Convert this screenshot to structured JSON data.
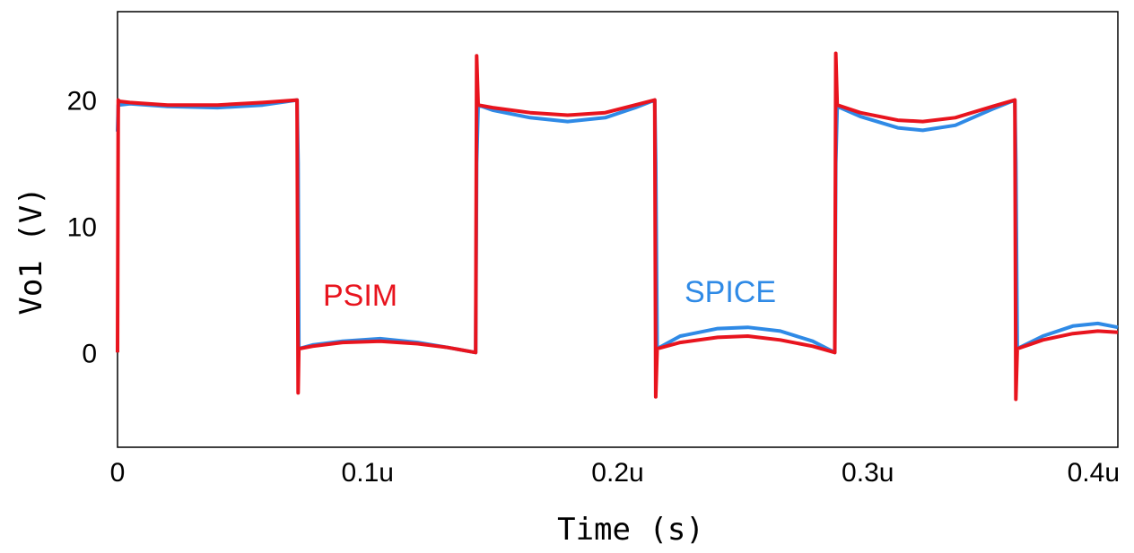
{
  "chart_data": {
    "type": "line",
    "xlabel": "Time (s)",
    "ylabel": "Vo1 (V)",
    "xlim": [
      0,
      0.4
    ],
    "ylim": [
      -7.5,
      27
    ],
    "x_ticks": [
      {
        "value": 0,
        "label": "0"
      },
      {
        "value": 0.1,
        "label": "0.1u"
      },
      {
        "value": 0.2,
        "label": "0.2u"
      },
      {
        "value": 0.3,
        "label": "0.3u"
      },
      {
        "value": 0.4,
        "label": "0.4u"
      }
    ],
    "y_ticks": [
      {
        "value": 0,
        "label": "0"
      },
      {
        "value": 10,
        "label": "10"
      },
      {
        "value": 20,
        "label": "20"
      }
    ],
    "grid": false,
    "legend": "inline labels",
    "series": [
      {
        "name": "SPICE",
        "color": "#2f8ae6",
        "x": [
          0.0,
          0.0003,
          0.005,
          0.02,
          0.04,
          0.058,
          0.0718,
          0.0722,
          0.0725,
          0.078,
          0.09,
          0.105,
          0.12,
          0.132,
          0.1432,
          0.1436,
          0.1442,
          0.15,
          0.165,
          0.18,
          0.195,
          0.207,
          0.2148,
          0.2152,
          0.2158,
          0.225,
          0.24,
          0.252,
          0.265,
          0.278,
          0.2868,
          0.2872,
          0.2878,
          0.297,
          0.312,
          0.322,
          0.335,
          0.35,
          0.3588,
          0.3592,
          0.3598,
          0.37,
          0.382,
          0.392,
          0.4
        ],
        "values": [
          17.5,
          19.6,
          19.7,
          19.5,
          19.4,
          19.6,
          20.0,
          15.0,
          0.3,
          0.6,
          0.9,
          1.1,
          0.8,
          0.4,
          0.0,
          15.0,
          19.6,
          19.2,
          18.6,
          18.3,
          18.6,
          19.4,
          20.0,
          15.0,
          0.3,
          1.3,
          1.9,
          2.0,
          1.7,
          0.9,
          0.0,
          15.0,
          19.5,
          18.7,
          17.8,
          17.6,
          18.0,
          19.3,
          20.0,
          15.0,
          0.3,
          1.3,
          2.1,
          2.3,
          2.0
        ]
      },
      {
        "name": "PSIM",
        "color": "#e8141e",
        "x": [
          0.0,
          0.0003,
          0.0006,
          0.005,
          0.02,
          0.04,
          0.058,
          0.0718,
          0.0722,
          0.0725,
          0.078,
          0.09,
          0.105,
          0.12,
          0.132,
          0.1432,
          0.1436,
          0.1442,
          0.15,
          0.165,
          0.18,
          0.195,
          0.207,
          0.2148,
          0.2152,
          0.2158,
          0.225,
          0.24,
          0.252,
          0.265,
          0.278,
          0.2868,
          0.2872,
          0.2878,
          0.297,
          0.312,
          0.322,
          0.335,
          0.35,
          0.3588,
          0.3592,
          0.3598,
          0.37,
          0.382,
          0.392,
          0.4
        ],
        "values": [
          0.0,
          20.0,
          19.9,
          19.8,
          19.6,
          19.6,
          19.8,
          20.0,
          -3.2,
          0.3,
          0.5,
          0.8,
          0.9,
          0.7,
          0.4,
          0.0,
          23.5,
          19.6,
          19.4,
          19.0,
          18.8,
          19.0,
          19.6,
          20.0,
          -3.5,
          0.3,
          0.8,
          1.2,
          1.3,
          1.0,
          0.5,
          0.0,
          23.7,
          19.6,
          19.0,
          18.4,
          18.3,
          18.6,
          19.5,
          20.0,
          -3.7,
          0.3,
          1.0,
          1.5,
          1.7,
          1.6
        ]
      }
    ]
  }
}
